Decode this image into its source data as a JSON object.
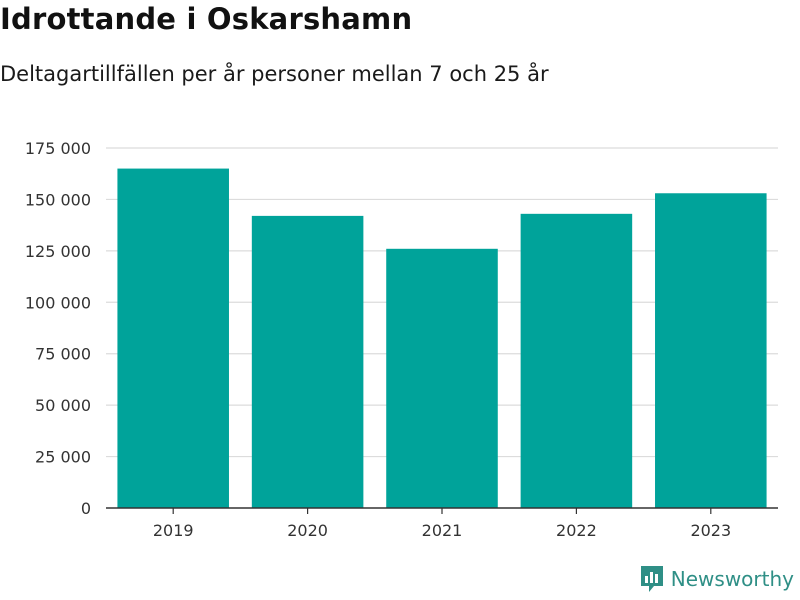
{
  "chart_data": {
    "type": "bar",
    "title": "Idrottande i Oskarshamn",
    "subtitle": "Deltagartillfällen per år personer mellan 7 och 25 år",
    "categories": [
      "2019",
      "2020",
      "2021",
      "2022",
      "2023"
    ],
    "values": [
      165000,
      142000,
      126000,
      143000,
      153000
    ],
    "ylim": [
      0,
      175000
    ],
    "yticks": [
      0,
      25000,
      50000,
      75000,
      100000,
      125000,
      150000,
      175000
    ],
    "ytick_labels": [
      "0",
      "25 000",
      "50 000",
      "75 000",
      "100 000",
      "125 000",
      "150 000",
      "175 000"
    ],
    "xlabel": "",
    "ylabel": "",
    "grid": true,
    "bar_color": "#00a39a"
  },
  "brand": {
    "name": "Newsworthy",
    "icon": "newsworthy-logo-icon",
    "color": "#2f8f86"
  }
}
